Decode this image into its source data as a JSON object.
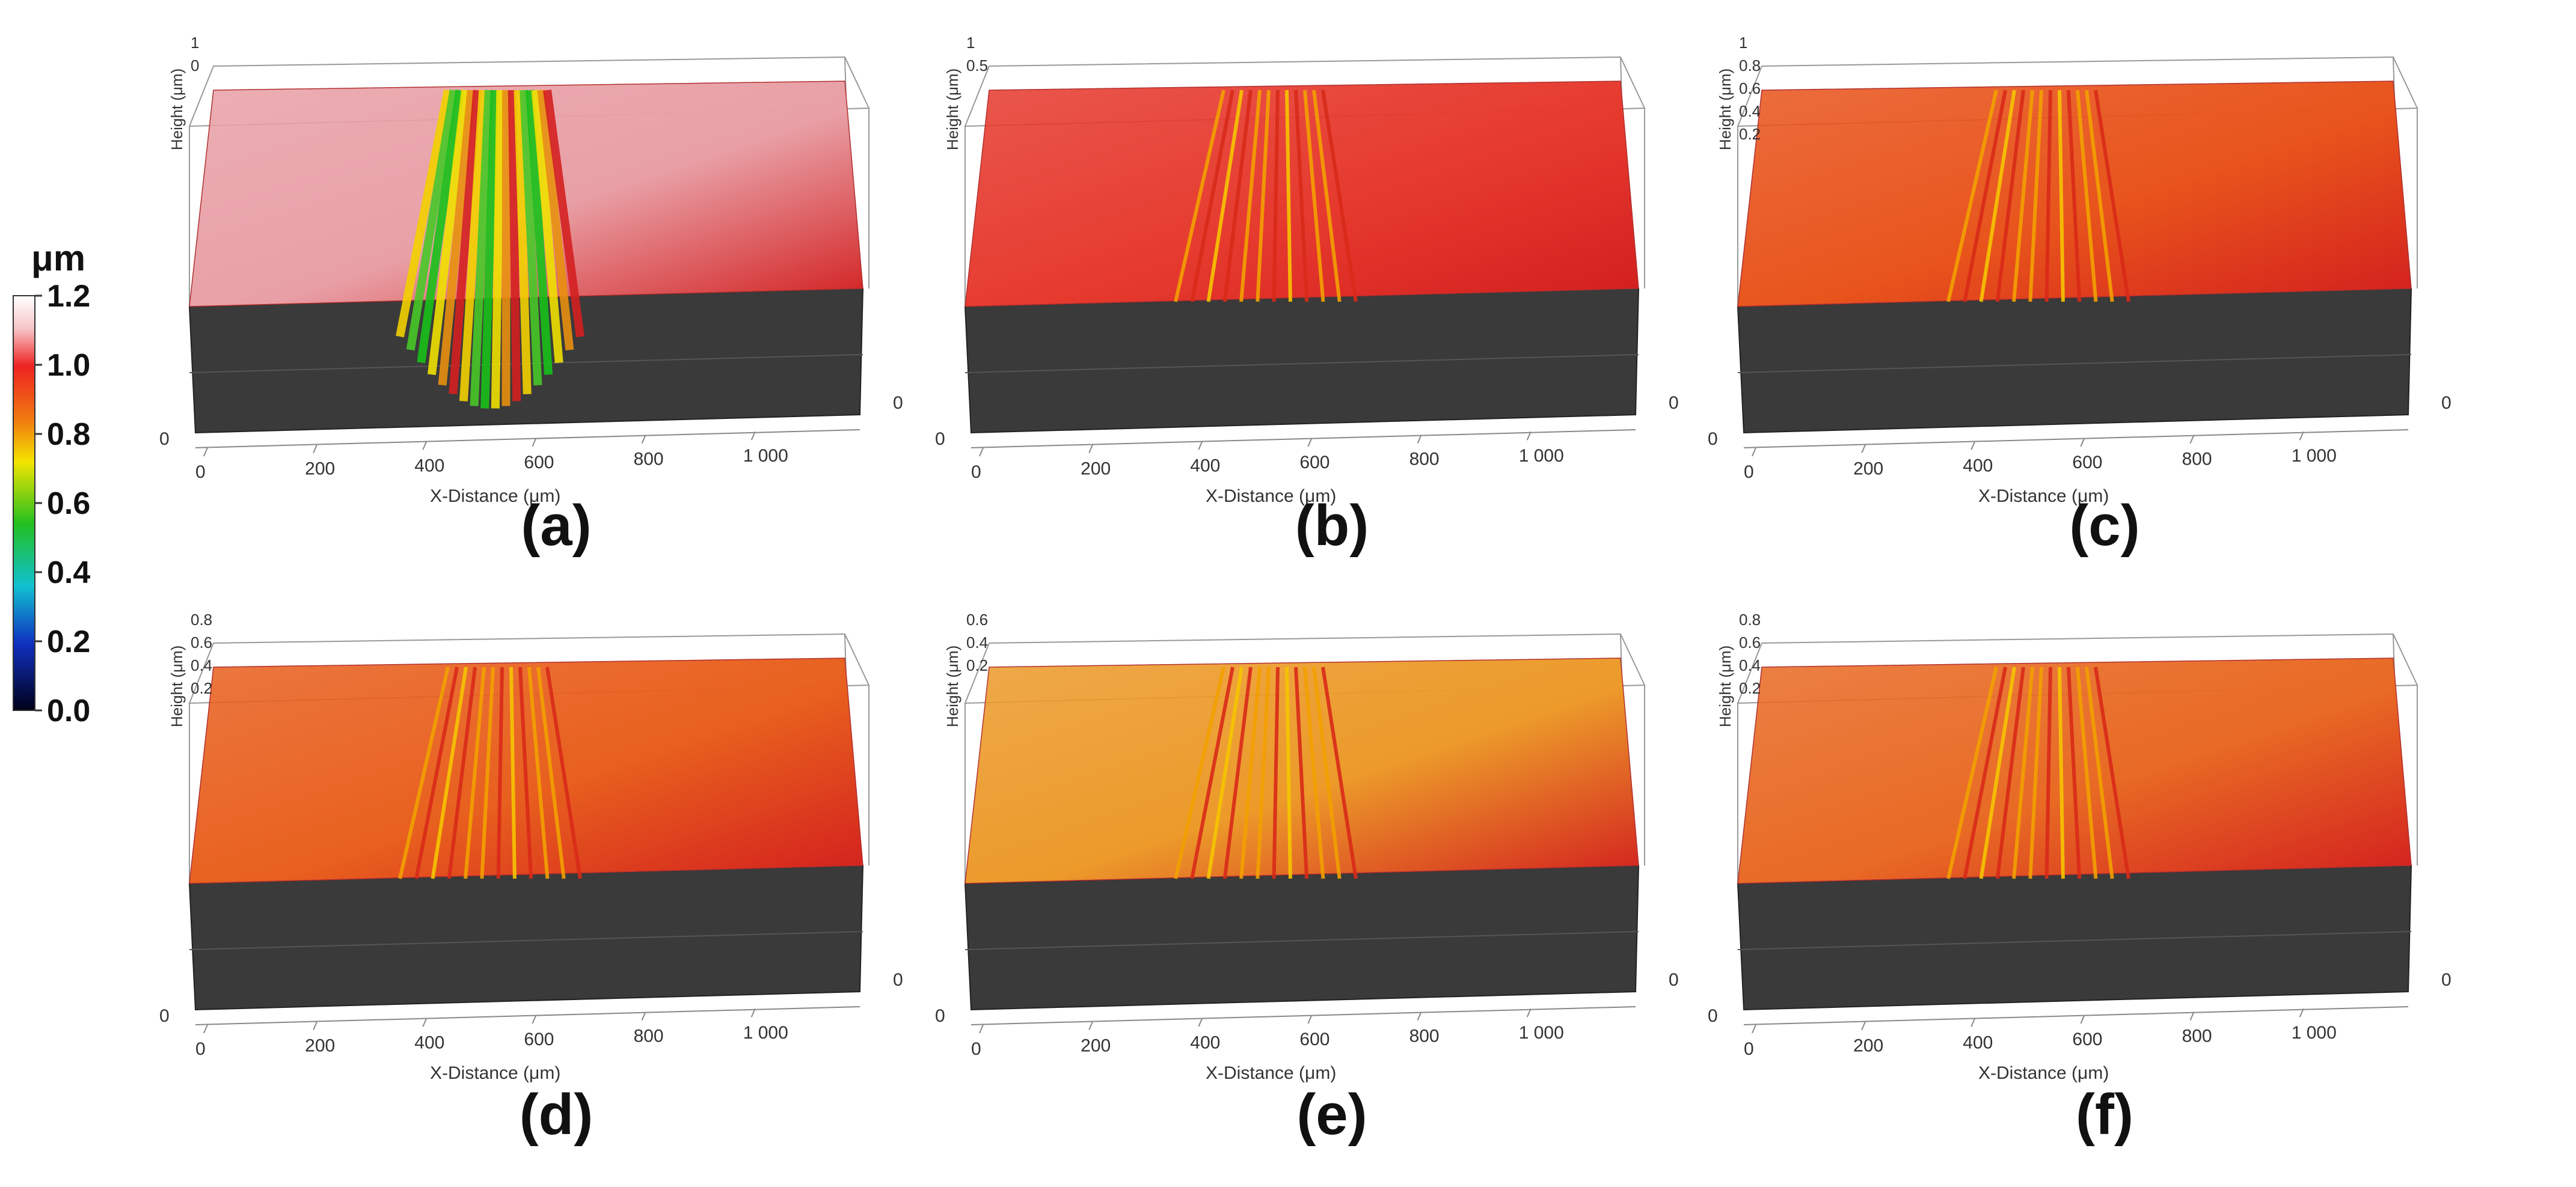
{
  "figure": {
    "colorbar": {
      "unit": "μm",
      "ticks": [
        "1.2",
        "1.0",
        "0.8",
        "0.6",
        "0.4",
        "0.2",
        "0.0"
      ],
      "min": 0.0,
      "max": 1.2
    },
    "axis": {
      "x_title": "X-Distance (μm)",
      "height_title": "Height (μm)",
      "x_ticks": [
        "0",
        "200",
        "400",
        "600",
        "800",
        "1 000"
      ],
      "depth_tick": "0"
    },
    "panels": [
      {
        "label": "(a)",
        "surface_color": "#e8a0a6",
        "height_ticks": [
          "1",
          "0"
        ]
      },
      {
        "label": "(b)",
        "surface_color": "#e63a2e",
        "height_ticks": [
          "1",
          "0.5"
        ]
      },
      {
        "label": "(c)",
        "surface_color": "#e8541c",
        "height_ticks": [
          "1",
          "0.8",
          "0.6",
          "0.4",
          "0.2"
        ]
      },
      {
        "label": "(d)",
        "surface_color": "#e8601e",
        "height_ticks": [
          "0.8",
          "0.6",
          "0.4",
          "0.2"
        ]
      },
      {
        "label": "(e)",
        "surface_color": "#ec9a2a",
        "height_ticks": [
          "0.6",
          "0.4",
          "0.2"
        ]
      },
      {
        "label": "(f)",
        "surface_color": "#e86a24",
        "height_ticks": [
          "0.8",
          "0.6",
          "0.4",
          "0.2"
        ]
      }
    ]
  }
}
